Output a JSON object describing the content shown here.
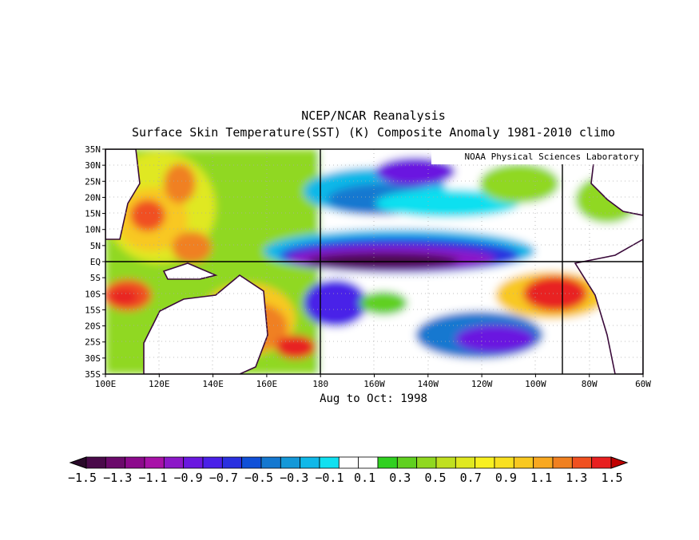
{
  "title": {
    "line1": "NCEP/NCAR Reanalysis",
    "line2": "Surface Skin Temperature(SST) (K) Composite Anomaly 1981-2010 climo"
  },
  "subtitle": "Aug to Oct: 1998",
  "credit": "NOAA Physical Sciences Laboratory",
  "map": {
    "lon_range": [
      100,
      300
    ],
    "lat_range": [
      -35,
      35
    ],
    "lon_ticks": [
      "100E",
      "120E",
      "140E",
      "160E",
      "180",
      "160W",
      "140W",
      "120W",
      "100W",
      "80W",
      "60W"
    ],
    "lat_ticks": [
      "35N",
      "30N",
      "25N",
      "20N",
      "15N",
      "10N",
      "5N",
      "EQ",
      "5S",
      "10S",
      "15S",
      "20S",
      "25S",
      "30S",
      "35S"
    ],
    "reference_lines": [
      "EQ",
      "180",
      "90W"
    ]
  },
  "colorbar": {
    "labels": [
      "-1.5",
      "-1.3",
      "-1.1",
      "-0.9",
      "-0.7",
      "-0.5",
      "-0.3",
      "-0.1",
      "0.1",
      "0.3",
      "0.5",
      "0.7",
      "0.9",
      "1.1",
      "1.3",
      "1.5"
    ],
    "colors": [
      "#4a0a4a",
      "#6b0a6b",
      "#8c0a8c",
      "#a812a8",
      "#8c18c8",
      "#6a18e0",
      "#4a20e8",
      "#2a30e0",
      "#1050d8",
      "#1478d0",
      "#1498d8",
      "#10b8e8",
      "#10e0f0",
      "#ffffff",
      "#ffffff",
      "#30d020",
      "#60d020",
      "#90d820",
      "#c0e020",
      "#e0e820",
      "#f8f020",
      "#f8e020",
      "#f8c820",
      "#f8a820",
      "#f08020",
      "#f05020",
      "#e82020"
    ],
    "under_color": "#2a0a2a",
    "over_color": "#c00000"
  }
}
